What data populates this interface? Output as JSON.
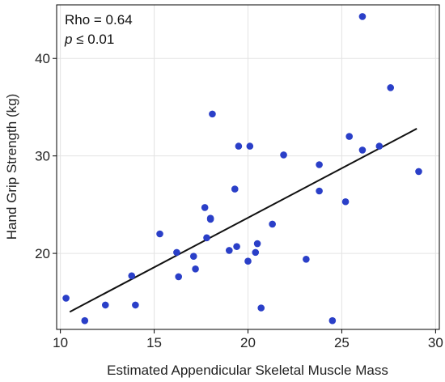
{
  "chart_data": {
    "type": "scatter",
    "xlabel": "Estimated Appendicular Skeletal Muscle Mass",
    "ylabel": "Hand Grip Strength (kg)",
    "xlim": [
      9.8,
      30.2
    ],
    "ylim": [
      12.2,
      45.5
    ],
    "x_ticks": [
      10,
      15,
      20,
      25,
      30
    ],
    "y_ticks": [
      20,
      30,
      40
    ],
    "grid": true,
    "point_color": "#2a3fc8",
    "line_color": "#111111",
    "points": [
      {
        "x": 10.3,
        "y": 15.4
      },
      {
        "x": 11.3,
        "y": 13.1
      },
      {
        "x": 12.4,
        "y": 14.7
      },
      {
        "x": 13.8,
        "y": 17.7
      },
      {
        "x": 14.0,
        "y": 14.7
      },
      {
        "x": 15.3,
        "y": 22.0
      },
      {
        "x": 16.2,
        "y": 20.1
      },
      {
        "x": 16.3,
        "y": 17.6
      },
      {
        "x": 17.1,
        "y": 19.7
      },
      {
        "x": 17.2,
        "y": 18.4
      },
      {
        "x": 17.7,
        "y": 24.7
      },
      {
        "x": 17.8,
        "y": 21.6
      },
      {
        "x": 18.0,
        "y": 23.5
      },
      {
        "x": 18.0,
        "y": 23.6
      },
      {
        "x": 18.1,
        "y": 34.3
      },
      {
        "x": 19.0,
        "y": 20.3
      },
      {
        "x": 19.3,
        "y": 26.6
      },
      {
        "x": 19.4,
        "y": 20.7
      },
      {
        "x": 19.5,
        "y": 31.0
      },
      {
        "x": 20.0,
        "y": 19.2
      },
      {
        "x": 20.1,
        "y": 31.0
      },
      {
        "x": 20.4,
        "y": 20.1
      },
      {
        "x": 20.5,
        "y": 21.0
      },
      {
        "x": 20.7,
        "y": 14.4
      },
      {
        "x": 21.3,
        "y": 23.0
      },
      {
        "x": 21.9,
        "y": 30.1
      },
      {
        "x": 23.1,
        "y": 19.4
      },
      {
        "x": 23.8,
        "y": 26.4
      },
      {
        "x": 23.8,
        "y": 29.1
      },
      {
        "x": 24.5,
        "y": 13.1
      },
      {
        "x": 25.2,
        "y": 25.3
      },
      {
        "x": 25.4,
        "y": 32.0
      },
      {
        "x": 26.1,
        "y": 30.6
      },
      {
        "x": 26.1,
        "y": 44.3
      },
      {
        "x": 27.0,
        "y": 31.0
      },
      {
        "x": 27.6,
        "y": 37.0
      },
      {
        "x": 29.1,
        "y": 28.4
      }
    ],
    "fit_line": {
      "x": [
        10.5,
        29.0
      ],
      "y": [
        14.0,
        32.8
      ]
    },
    "annotations": {
      "rho": "Rho = 0.64",
      "p_symbol": "p",
      "p_value": " ≤ 0.01"
    }
  }
}
